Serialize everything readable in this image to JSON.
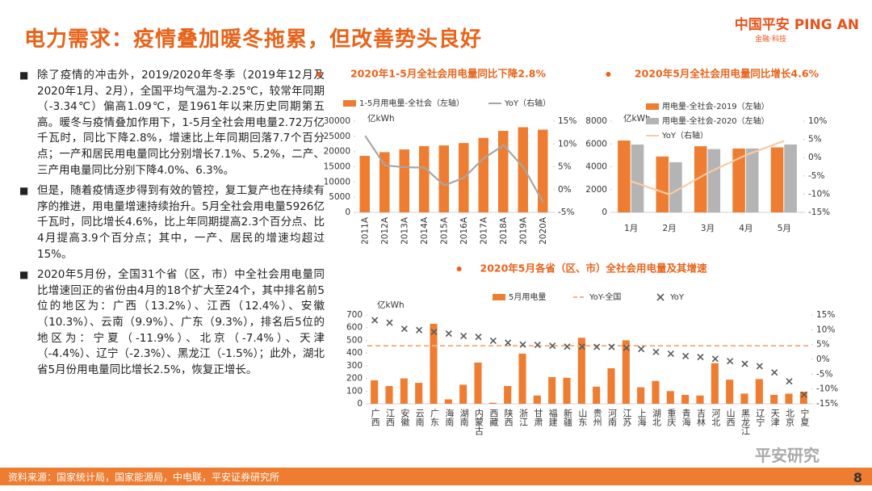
{
  "header": {
    "title": "电力需求：疫情叠加暖冬拖累，但改善势头良好",
    "logo_cn": "中国平安",
    "logo_en": "PING AN",
    "logo_sub": "金融·科技"
  },
  "bullets": [
    "除了疫情的冲击外，2019/2020年冬季（2019年12月及2020年1月、2月），全国平均气温为-2.25℃，较常年同期（-3.34℃）偏高1.09℃，是1961年以来历史同期第五高。暖冬与疫情叠加作用下，1-5月全社会用电量2.72万亿千瓦时，同比下降2.8%，增速比上年同期回落7.7个百分点；一产和居民用电量同比分别增长7.1%、5.2%，二产、三产用电量同比分别下降4.0%、6.3%。",
    "但是，随着疫情逐步得到有效的管控，复工复产也在持续有序的推进，用电量增速持续抬升。5月全社会用电量5926亿千瓦时，同比增长4.6%，比上年同期提高2.3个百分点、比4月提高3.9个百分点；其中，一产、居民的增速均超过15%。",
    "2020年5月份，全国31个省（区，市）中全社会用电量同比增速回正的省份由4月的18个扩大至24个，其中排名前5位的地区为：广西（13.2%）、江西（12.4%）、安徽（10.3%）、云南（9.9%）、广东（9.3%），排名后5位的地区为：宁夏（-11.9%）、北京（-7.4%）、天津（-4.4%）、辽宁（-2.3%）、黑龙江（-1.5%）；此外，湖北省5月份用电量同比增长2.5%，恢复正增长。"
  ],
  "chart_data": [
    {
      "type": "bar_line",
      "title": "2020年1-5月全社会用电量同比下降2.8%",
      "y_label": "亿kWh",
      "categories": [
        "2011A",
        "2012A",
        "2013A",
        "2014A",
        "2015A",
        "2016A",
        "2017A",
        "2018A",
        "2019A",
        "2020A"
      ],
      "series": [
        {
          "name": "1-5月用电量-全社会（左轴）",
          "type": "bar",
          "color": "#ee7d31",
          "values": [
            18600,
            19800,
            20700,
            21800,
            22000,
            22800,
            24500,
            26800,
            28000,
            27200
          ]
        },
        {
          "name": "YoY（右轴）",
          "type": "line",
          "axis": "y2",
          "color": "#a6a6a6",
          "values": [
            11.8,
            5.3,
            4.9,
            4.8,
            0.9,
            2.6,
            6.9,
            9.7,
            4.9,
            -2.8
          ]
        }
      ],
      "ylim": [
        0,
        30000
      ],
      "yticks": [
        0,
        5000,
        10000,
        15000,
        20000,
        25000,
        30000
      ],
      "y2lim": [
        -5,
        15
      ],
      "y2ticks": [
        {
          "value": -5,
          "label": "-5%"
        },
        {
          "value": 0,
          "label": "0%"
        },
        {
          "value": 5,
          "label": "5%"
        },
        {
          "value": 10,
          "label": "10%"
        },
        {
          "value": 15,
          "label": "15%"
        }
      ]
    },
    {
      "type": "bar_line",
      "title": "2020年5月全社会用电量同比增长4.6%",
      "y_label": "亿kWh",
      "categories": [
        "1月",
        "2月",
        "3月",
        "4月",
        "5月"
      ],
      "series": [
        {
          "name": "用电量-全社会-2019（左轴）",
          "type": "bar",
          "color": "#ee7d31",
          "values": [
            6300,
            4900,
            5800,
            5600,
            5700
          ]
        },
        {
          "name": "用电量-全社会-2020（左轴）",
          "type": "bar",
          "color": "#b4b4b4",
          "values": [
            5950,
            4400,
            5550,
            5600,
            5950
          ]
        },
        {
          "name": "YoY（右轴）",
          "type": "line",
          "axis": "y2",
          "color": "#f8cba4",
          "values": [
            -6.5,
            -10.1,
            -4.2,
            0.7,
            4.6
          ]
        }
      ],
      "ylim": [
        0,
        8000
      ],
      "yticks": [
        0,
        2000,
        4000,
        6000,
        8000
      ],
      "y2lim": [
        -15,
        10
      ],
      "y2ticks": [
        {
          "value": -15,
          "label": "-15%"
        },
        {
          "value": -10,
          "label": "-10%"
        },
        {
          "value": -5,
          "label": "-5%"
        },
        {
          "value": 0,
          "label": "0%"
        },
        {
          "value": 5,
          "label": "5%"
        },
        {
          "value": 10,
          "label": "10%"
        }
      ]
    },
    {
      "type": "bar_line",
      "title": "2020年5月各省（区、市）全社会用电量及其增速",
      "y_label": "亿kWh",
      "categories": [
        "广西",
        "江西",
        "安徽",
        "云南",
        "广东",
        "海南",
        "湖南",
        "内蒙古",
        "西藏",
        "陕西",
        "浙江",
        "甘肃",
        "福建",
        "新疆",
        "山东",
        "贵州",
        "河南",
        "江苏",
        "上海",
        "湖北",
        "重庆",
        "青海",
        "吉林",
        "河北",
        "山西",
        "黑龙江",
        "辽宁",
        "天津",
        "北京",
        "宁夏"
      ],
      "series": [
        {
          "name": "5月用电量",
          "type": "bar",
          "color": "#ee7d31",
          "values": [
            185,
            140,
            200,
            165,
            630,
            35,
            150,
            325,
            8,
            140,
            395,
            65,
            210,
            205,
            520,
            135,
            280,
            500,
            130,
            180,
            100,
            70,
            65,
            320,
            190,
            80,
            195,
            70,
            80,
            95
          ]
        },
        {
          "name": "YoY-全国",
          "type": "hline",
          "axis": "y2",
          "color": "#f4b183",
          "dashed": true,
          "value": 4.6
        },
        {
          "name": "YoY",
          "type": "scatter",
          "marker": "x",
          "axis": "y2",
          "color": "#595959",
          "values": [
            13.2,
            12.4,
            10.3,
            9.9,
            9.3,
            8.7,
            7.9,
            7.6,
            6.3,
            5.6,
            5.0,
            4.9,
            4.6,
            4.3,
            4.3,
            4.2,
            4.2,
            3.9,
            3.5,
            2.5,
            1.9,
            1.1,
            0.8,
            0.2,
            -0.6,
            -1.5,
            -2.3,
            -4.4,
            -7.4,
            -11.9
          ]
        }
      ],
      "ylim": [
        0,
        700
      ],
      "yticks": [
        0,
        100,
        200,
        300,
        400,
        500,
        600,
        700
      ],
      "y2lim": [
        -15,
        15
      ],
      "y2ticks": [
        {
          "value": -15,
          "label": "-15%"
        },
        {
          "value": -10,
          "label": "-10%"
        },
        {
          "value": -5,
          "label": "-5%"
        },
        {
          "value": 0,
          "label": "0%"
        },
        {
          "value": 5,
          "label": "5%"
        },
        {
          "value": 10,
          "label": "10%"
        },
        {
          "value": 15,
          "label": "15%"
        }
      ]
    }
  ],
  "footer": {
    "source": "资料来源：国家统计局，国家能源局，中电联，平安证券研究所",
    "page": "8",
    "watermark": "平安研究"
  }
}
